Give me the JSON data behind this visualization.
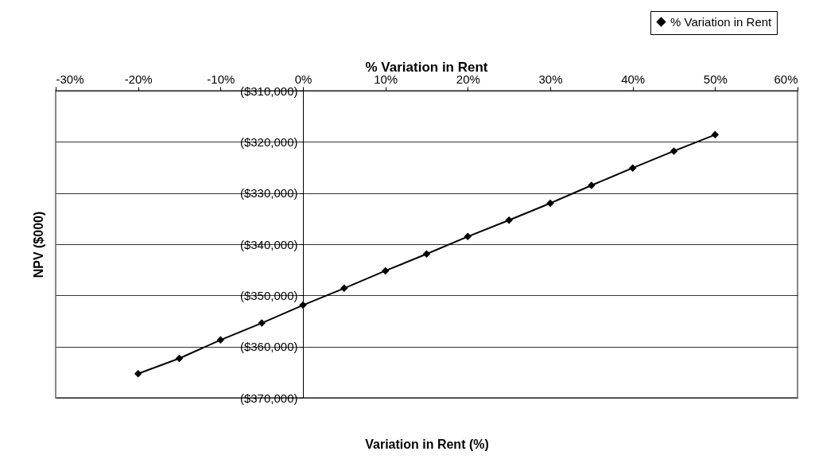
{
  "chart_data": {
    "type": "line",
    "title": "% Variation in Rent",
    "xlabel": "Variation in Rent (%)",
    "ylabel": "NPV ($000)",
    "x": [
      -20,
      -15,
      -10,
      -5,
      0,
      5,
      10,
      15,
      20,
      25,
      30,
      35,
      40,
      45,
      50
    ],
    "series": [
      {
        "name": "% Variation in Rent",
        "color": "#000000",
        "values": [
          -365300,
          -362300,
          -358700,
          -355400,
          -351900,
          -348600,
          -345200,
          -341900,
          -338500,
          -335300,
          -332000,
          -328500,
          -325100,
          -321800,
          -318600
        ]
      }
    ],
    "xlim": [
      -30,
      60
    ],
    "xticks": [
      {
        "value": -30,
        "label": "-30%"
      },
      {
        "value": -20,
        "label": "-20%"
      },
      {
        "value": -10,
        "label": "-10%"
      },
      {
        "value": 0,
        "label": "0%"
      },
      {
        "value": 10,
        "label": "10%"
      },
      {
        "value": 20,
        "label": "20%"
      },
      {
        "value": 30,
        "label": "30%"
      },
      {
        "value": 40,
        "label": "40%"
      },
      {
        "value": 50,
        "label": "50%"
      },
      {
        "value": 60,
        "label": "60%"
      }
    ],
    "ylim": [
      -370000,
      -310000
    ],
    "yticks": [
      {
        "value": -370000,
        "label": "($370,000)"
      },
      {
        "value": -360000,
        "label": "($360,000)"
      },
      {
        "value": -350000,
        "label": "($350,000)"
      },
      {
        "value": -340000,
        "label": "($340,000)"
      },
      {
        "value": -330000,
        "label": "($330,000)"
      },
      {
        "value": -320000,
        "label": "($320,000)"
      },
      {
        "value": -310000,
        "label": "($310,000)"
      }
    ],
    "grid": "y",
    "legend": "top right",
    "marker": "diamond",
    "line_style": "solid"
  }
}
